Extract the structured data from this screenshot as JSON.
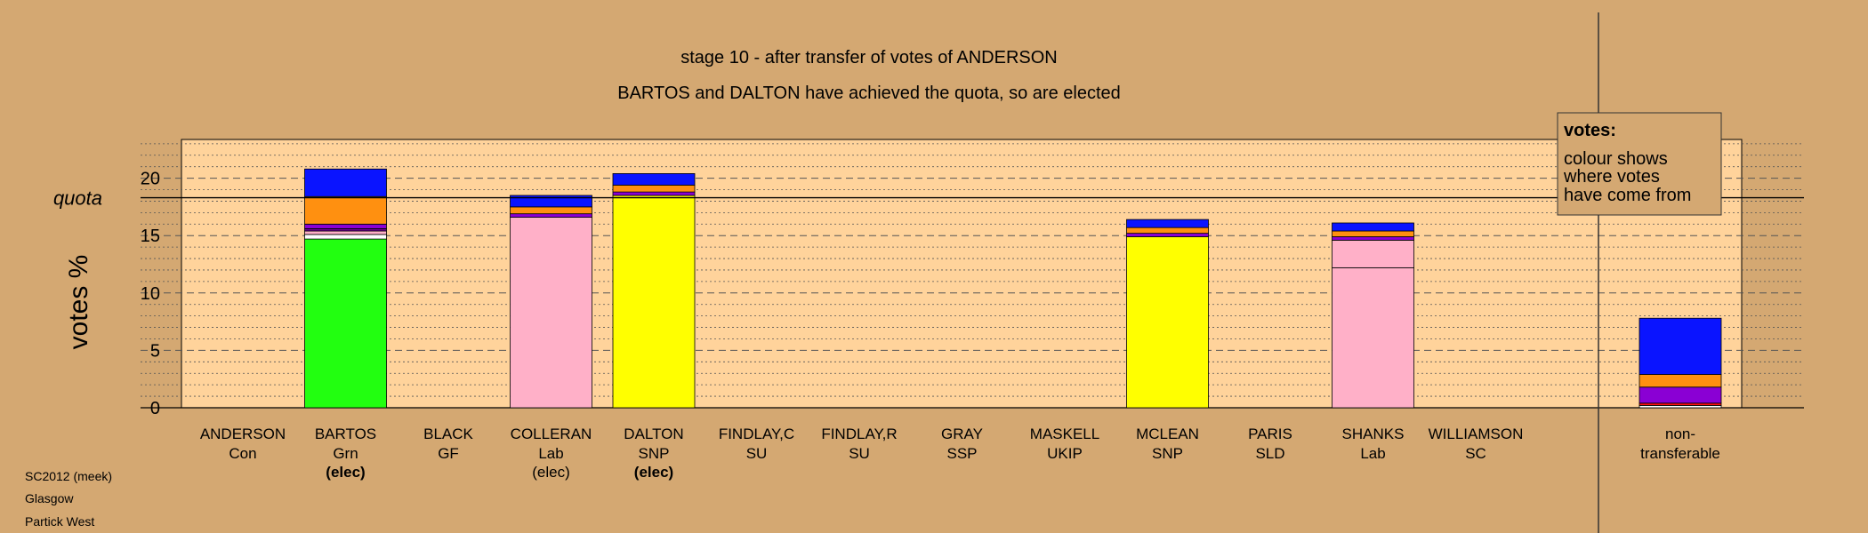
{
  "chart_data": {
    "type": "bar",
    "title": "stage 10 - after transfer of votes of ANDERSON",
    "subtitle": "BARTOS and DALTON have achieved the quota, so are elected",
    "ylabel": "votes %",
    "ylim": [
      0,
      23.5
    ],
    "yticks": [
      0,
      5,
      10,
      15,
      20
    ],
    "quota": 18.3,
    "quota_label": "quota",
    "grid": true,
    "colors": {
      "green": "#22ff10",
      "white": "#ffffff",
      "pink": "#ffb0c8",
      "yellow": "#ffff00",
      "purple": "#8a00d4",
      "darkpurple": "#6a0090",
      "orange": "#ff9010",
      "blue": "#0a14ff",
      "red": "#ff1010",
      "plot_bg": "#ffd39b",
      "page_bg": "#d4a872"
    },
    "categories": [
      {
        "name": "ANDERSON",
        "party": "Con",
        "status": "",
        "bold": false,
        "segments": []
      },
      {
        "name": "BARTOS",
        "party": "Grn",
        "status": "(elec)",
        "bold": true,
        "segments": [
          {
            "color": "green",
            "value": 14.7
          },
          {
            "color": "white",
            "value": 0.4
          },
          {
            "color": "pink",
            "value": 0.3
          },
          {
            "color": "darkpurple",
            "value": 0.2
          },
          {
            "color": "purple",
            "value": 0.4
          },
          {
            "color": "orange",
            "value": 2.4
          },
          {
            "color": "blue",
            "value": 2.4
          }
        ]
      },
      {
        "name": "BLACK",
        "party": "GF",
        "status": "",
        "bold": false,
        "segments": []
      },
      {
        "name": "COLLERAN",
        "party": "Lab",
        "status": "(elec)",
        "bold": false,
        "segments": [
          {
            "color": "pink",
            "value": 16.6
          },
          {
            "color": "purple",
            "value": 0.3
          },
          {
            "color": "orange",
            "value": 0.6
          },
          {
            "color": "blue",
            "value": 1.0
          }
        ]
      },
      {
        "name": "DALTON",
        "party": "SNP",
        "status": "(elec)",
        "bold": true,
        "segments": [
          {
            "color": "yellow",
            "value": 18.5
          },
          {
            "color": "purple",
            "value": 0.3
          },
          {
            "color": "orange",
            "value": 0.6
          },
          {
            "color": "blue",
            "value": 1.0
          }
        ]
      },
      {
        "name": "FINDLAY,C",
        "party": "SU",
        "status": "",
        "bold": false,
        "segments": []
      },
      {
        "name": "FINDLAY,R",
        "party": "SU",
        "status": "",
        "bold": false,
        "segments": []
      },
      {
        "name": "GRAY",
        "party": "SSP",
        "status": "",
        "bold": false,
        "segments": []
      },
      {
        "name": "MASKELL",
        "party": "UKIP",
        "status": "",
        "bold": false,
        "segments": []
      },
      {
        "name": "MCLEAN",
        "party": "SNP",
        "status": "",
        "bold": false,
        "segments": [
          {
            "color": "yellow",
            "value": 14.9
          },
          {
            "color": "purple",
            "value": 0.3
          },
          {
            "color": "orange",
            "value": 0.5
          },
          {
            "color": "blue",
            "value": 0.7
          }
        ]
      },
      {
        "name": "PARIS",
        "party": "SLD",
        "status": "",
        "bold": false,
        "segments": []
      },
      {
        "name": "SHANKS",
        "party": "Lab",
        "status": "",
        "bold": false,
        "segments": [
          {
            "color": "pink",
            "value": 12.2
          },
          {
            "color": "pink",
            "value": 2.4
          },
          {
            "color": "purple",
            "value": 0.3
          },
          {
            "color": "orange",
            "value": 0.5
          },
          {
            "color": "blue",
            "value": 0.7
          }
        ]
      },
      {
        "name": "WILLIAMSON",
        "party": "SC",
        "status": "",
        "bold": false,
        "segments": []
      }
    ],
    "nontransferable": {
      "label_line1": "non-",
      "label_line2": "transferable",
      "segments": [
        {
          "color": "white",
          "value": 0.2
        },
        {
          "color": "red",
          "value": 0.2
        },
        {
          "color": "purple",
          "value": 1.4
        },
        {
          "color": "orange",
          "value": 1.1
        },
        {
          "color": "blue",
          "value": 4.9
        }
      ]
    },
    "legend": {
      "title": "votes:",
      "lines": [
        "colour shows",
        "where votes",
        "have come from"
      ],
      "placement": "top-right"
    }
  },
  "footer": {
    "line1": "SC2012 (meek)",
    "line2": "Glasgow",
    "line3": "Partick West"
  }
}
